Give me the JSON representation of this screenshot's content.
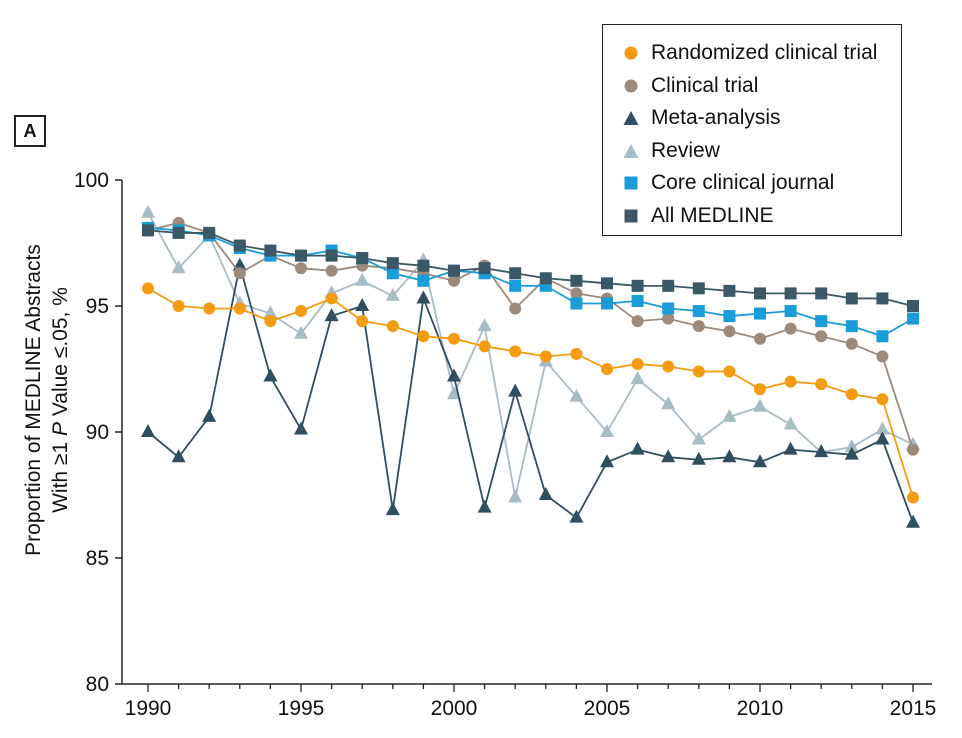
{
  "panel_label": "A",
  "colors": {
    "randomized": "#f39c12",
    "clinical": "#9c8b7d",
    "meta": "#2f4e5e",
    "review": "#a8bcc6",
    "core": "#1a9cd8",
    "all": "#3a5866"
  },
  "chart_data": {
    "type": "line",
    "ylabel_line1": "Proportion of MEDLINE Abstracts",
    "ylabel_line2_prefix": "With ≥1 ",
    "ylabel_line2_italic": "P",
    "ylabel_line2_suffix": " Value ≤.05, %",
    "xlabel": "",
    "ylim": [
      80,
      100
    ],
    "xlim": [
      1990,
      2015
    ],
    "yticks": [
      80,
      85,
      90,
      95,
      100
    ],
    "xticks": [
      1990,
      1995,
      2000,
      2005,
      2010,
      2015
    ],
    "x": [
      1990,
      1991,
      1992,
      1993,
      1994,
      1995,
      1996,
      1997,
      1998,
      1999,
      2000,
      2001,
      2002,
      2003,
      2004,
      2005,
      2006,
      2007,
      2008,
      2009,
      2010,
      2011,
      2012,
      2013,
      2014,
      2015
    ],
    "legend_position": "top-right",
    "series": [
      {
        "name": "Randomized clinical trial",
        "marker": "circle",
        "color_key": "randomized",
        "values": [
          95.7,
          95.0,
          94.9,
          94.9,
          94.4,
          94.8,
          95.3,
          94.4,
          94.2,
          93.8,
          93.7,
          93.4,
          93.2,
          93.0,
          93.1,
          92.5,
          92.7,
          92.6,
          92.4,
          92.4,
          91.7,
          92.0,
          91.9,
          91.5,
          91.3,
          87.4
        ]
      },
      {
        "name": "Clinical trial",
        "marker": "circle",
        "color_key": "clinical",
        "values": [
          98.0,
          98.3,
          97.9,
          96.3,
          97.0,
          96.5,
          96.4,
          96.6,
          96.5,
          96.3,
          96.0,
          96.6,
          94.9,
          96.1,
          95.5,
          95.3,
          94.4,
          94.5,
          94.2,
          94.0,
          93.7,
          94.1,
          93.8,
          93.5,
          93.0,
          89.3
        ]
      },
      {
        "name": "Meta-analysis",
        "marker": "triangle",
        "color_key": "meta",
        "values": [
          90.0,
          89.0,
          90.6,
          96.6,
          92.2,
          90.1,
          94.6,
          95.0,
          86.9,
          95.3,
          92.2,
          87.0,
          91.6,
          87.5,
          86.6,
          88.8,
          89.3,
          89.0,
          88.9,
          89.0,
          88.8,
          89.3,
          89.2,
          89.1,
          89.7,
          86.4
        ]
      },
      {
        "name": "Review",
        "marker": "triangle",
        "color_key": "review",
        "values": [
          98.7,
          96.5,
          97.8,
          95.1,
          94.7,
          93.9,
          95.5,
          96.0,
          95.4,
          96.8,
          91.5,
          94.2,
          87.4,
          92.8,
          91.4,
          90.0,
          92.1,
          91.1,
          89.7,
          90.6,
          91.0,
          90.3,
          89.2,
          89.4,
          90.1,
          89.5
        ]
      },
      {
        "name": "Core clinical journal",
        "marker": "square",
        "color_key": "core",
        "values": [
          98.1,
          98.0,
          97.8,
          97.3,
          97.0,
          97.0,
          97.2,
          96.9,
          96.3,
          96.0,
          96.4,
          96.3,
          95.8,
          95.8,
          95.1,
          95.1,
          95.2,
          94.9,
          94.8,
          94.6,
          94.7,
          94.8,
          94.4,
          94.2,
          93.8,
          94.5
        ]
      },
      {
        "name": "All MEDLINE",
        "marker": "square",
        "color_key": "all",
        "values": [
          98.0,
          97.9,
          97.9,
          97.4,
          97.2,
          97.0,
          97.0,
          96.9,
          96.7,
          96.6,
          96.4,
          96.5,
          96.3,
          96.1,
          96.0,
          95.9,
          95.8,
          95.8,
          95.7,
          95.6,
          95.5,
          95.5,
          95.5,
          95.3,
          95.3,
          95.0
        ]
      }
    ]
  }
}
